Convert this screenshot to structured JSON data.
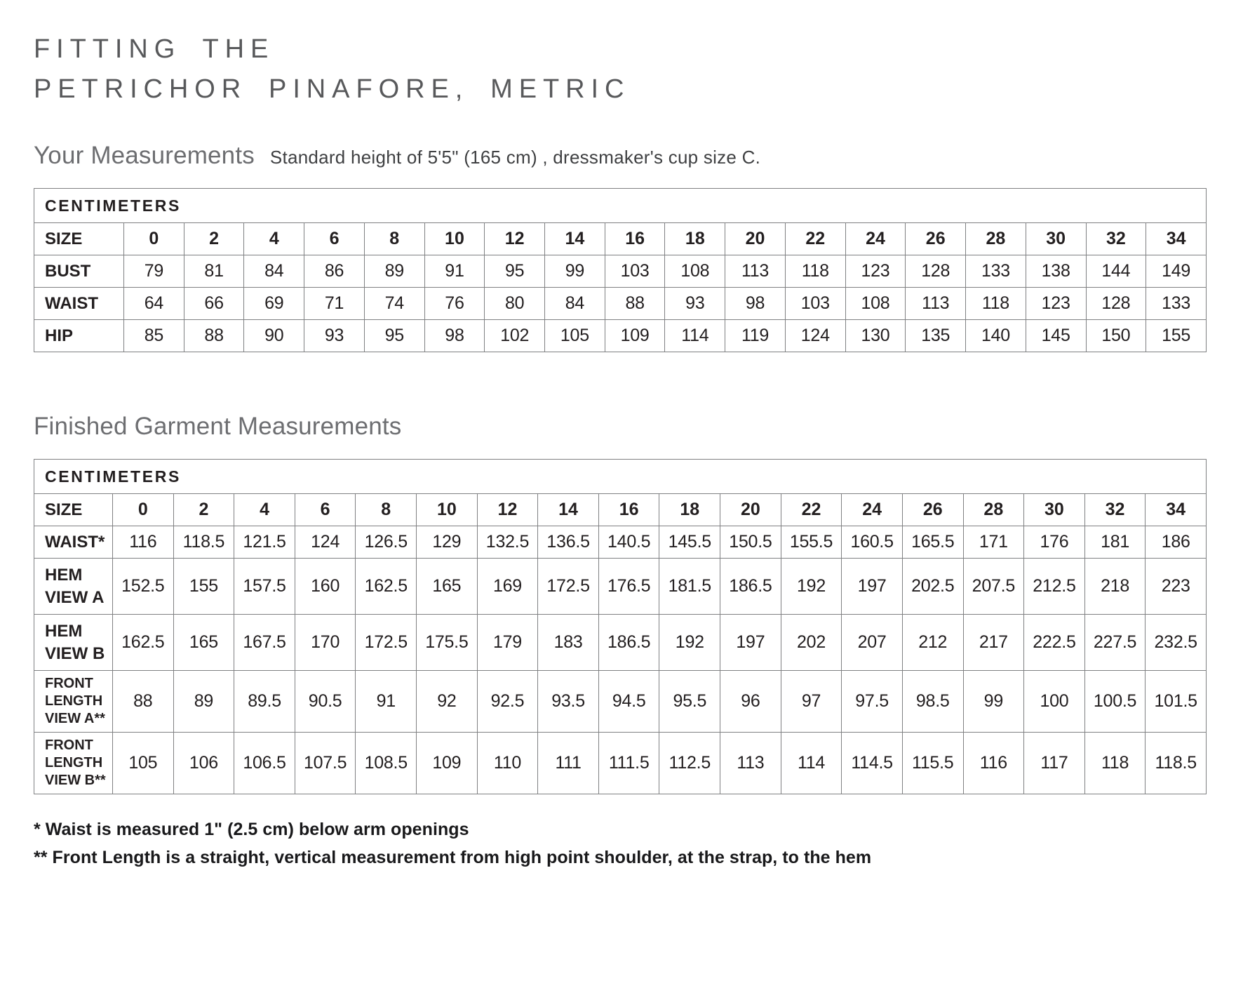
{
  "title": {
    "line1": "FITTING THE",
    "line2": "PETRICHOR PINAFORE, METRIC"
  },
  "your_measurements": {
    "heading": "Your Measurements",
    "note": "Standard height of 5'5\" (165 cm) , dressmaker's cup size C.",
    "table": {
      "unit_label": "CENTIMETERS",
      "size_label": "SIZE",
      "sizes": [
        "0",
        "2",
        "4",
        "6",
        "8",
        "10",
        "12",
        "14",
        "16",
        "18",
        "20",
        "22",
        "24",
        "26",
        "28",
        "30",
        "32",
        "34"
      ],
      "rows": [
        {
          "label": "BUST",
          "values": [
            "79",
            "81",
            "84",
            "86",
            "89",
            "91",
            "95",
            "99",
            "103",
            "108",
            "113",
            "118",
            "123",
            "128",
            "133",
            "138",
            "144",
            "149"
          ]
        },
        {
          "label": "WAIST",
          "values": [
            "64",
            "66",
            "69",
            "71",
            "74",
            "76",
            "80",
            "84",
            "88",
            "93",
            "98",
            "103",
            "108",
            "113",
            "118",
            "123",
            "128",
            "133"
          ]
        },
        {
          "label": "HIP",
          "values": [
            "85",
            "88",
            "90",
            "93",
            "95",
            "98",
            "102",
            "105",
            "109",
            "114",
            "119",
            "124",
            "130",
            "135",
            "140",
            "145",
            "150",
            "155"
          ]
        }
      ]
    }
  },
  "finished_garment": {
    "heading": "Finished Garment Measurements",
    "table": {
      "unit_label": "CENTIMETERS",
      "size_label": "SIZE",
      "sizes": [
        "0",
        "2",
        "4",
        "6",
        "8",
        "10",
        "12",
        "14",
        "16",
        "18",
        "20",
        "22",
        "24",
        "26",
        "28",
        "30",
        "32",
        "34"
      ],
      "rows": [
        {
          "label": "WAIST*",
          "values": [
            "116",
            "118.5",
            "121.5",
            "124",
            "126.5",
            "129",
            "132.5",
            "136.5",
            "140.5",
            "145.5",
            "150.5",
            "155.5",
            "160.5",
            "165.5",
            "171",
            "176",
            "181",
            "186"
          ]
        },
        {
          "label": "HEM\nVIEW A",
          "values": [
            "152.5",
            "155",
            "157.5",
            "160",
            "162.5",
            "165",
            "169",
            "172.5",
            "176.5",
            "181.5",
            "186.5",
            "192",
            "197",
            "202.5",
            "207.5",
            "212.5",
            "218",
            "223"
          ]
        },
        {
          "label": "HEM\nVIEW B",
          "values": [
            "162.5",
            "165",
            "167.5",
            "170",
            "172.5",
            "175.5",
            "179",
            "183",
            "186.5",
            "192",
            "197",
            "202",
            "207",
            "212",
            "217",
            "222.5",
            "227.5",
            "232.5"
          ]
        },
        {
          "label": "FRONT\nLENGTH\nVIEW A**",
          "values": [
            "88",
            "89",
            "89.5",
            "90.5",
            "91",
            "92",
            "92.5",
            "93.5",
            "94.5",
            "95.5",
            "96",
            "97",
            "97.5",
            "98.5",
            "99",
            "100",
            "100.5",
            "101.5"
          ]
        },
        {
          "label": "FRONT\nLENGTH\nVIEW B**",
          "values": [
            "105",
            "106",
            "106.5",
            "107.5",
            "108.5",
            "109",
            "110",
            "111",
            "111.5",
            "112.5",
            "113",
            "114",
            "114.5",
            "115.5",
            "116",
            "117",
            "118",
            "118.5"
          ]
        }
      ]
    }
  },
  "footnotes": [
    "* Waist is measured 1\" (2.5 cm) below arm openings",
    "** Front Length is a straight, vertical measurement from high point shoulder, at the strap, to the hem"
  ]
}
